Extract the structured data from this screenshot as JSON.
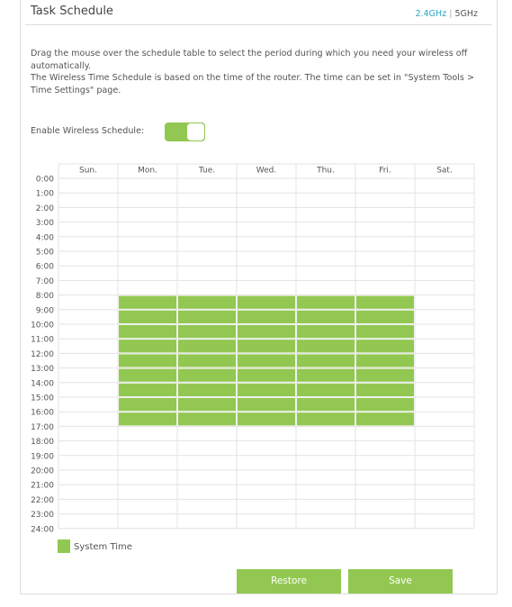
{
  "header": {
    "title": "Task Schedule",
    "band_24": "2.4GHz",
    "separator": "|",
    "band_5": "5GHz"
  },
  "intro": [
    "Drag the mouse over the schedule table to select the period during which you need your wireless off automatically.",
    "The Wireless Time Schedule is based on the time of the router. The time can be set in \"System Tools > Time Settings\" page."
  ],
  "enable": {
    "label": "Enable Wireless Schedule:",
    "on": true
  },
  "schedule": {
    "days": [
      "Sun.",
      "Mon.",
      "Tue.",
      "Wed.",
      "Thu.",
      "Fri.",
      "Sat."
    ],
    "times": [
      "0:00",
      "1:00",
      "2:00",
      "3:00",
      "4:00",
      "5:00",
      "6:00",
      "7:00",
      "8:00",
      "9:00",
      "10:00",
      "11:00",
      "12:00",
      "13:00",
      "14:00",
      "15:00",
      "16:00",
      "17:00",
      "18:00",
      "19:00",
      "20:00",
      "21:00",
      "22:00",
      "23:00",
      "24:00"
    ],
    "cells": [
      [
        false,
        false,
        false,
        false,
        false,
        false,
        false
      ],
      [
        false,
        false,
        false,
        false,
        false,
        false,
        false
      ],
      [
        false,
        false,
        false,
        false,
        false,
        false,
        false
      ],
      [
        false,
        false,
        false,
        false,
        false,
        false,
        false
      ],
      [
        false,
        false,
        false,
        false,
        false,
        false,
        false
      ],
      [
        false,
        false,
        false,
        false,
        false,
        false,
        false
      ],
      [
        false,
        false,
        false,
        false,
        false,
        false,
        false
      ],
      [
        false,
        false,
        false,
        false,
        false,
        false,
        false
      ],
      [
        false,
        true,
        true,
        true,
        true,
        true,
        false
      ],
      [
        false,
        true,
        true,
        true,
        true,
        true,
        false
      ],
      [
        false,
        true,
        true,
        true,
        true,
        true,
        false
      ],
      [
        false,
        true,
        true,
        true,
        true,
        true,
        false
      ],
      [
        false,
        true,
        true,
        true,
        true,
        true,
        false
      ],
      [
        false,
        true,
        true,
        true,
        true,
        true,
        false
      ],
      [
        false,
        true,
        true,
        true,
        true,
        true,
        false
      ],
      [
        false,
        true,
        true,
        true,
        true,
        true,
        false
      ],
      [
        false,
        true,
        true,
        true,
        true,
        true,
        false
      ],
      [
        false,
        false,
        false,
        false,
        false,
        false,
        false
      ],
      [
        false,
        false,
        false,
        false,
        false,
        false,
        false
      ],
      [
        false,
        false,
        false,
        false,
        false,
        false,
        false
      ],
      [
        false,
        false,
        false,
        false,
        false,
        false,
        false
      ],
      [
        false,
        false,
        false,
        false,
        false,
        false,
        false
      ],
      [
        false,
        false,
        false,
        false,
        false,
        false,
        false
      ],
      [
        false,
        false,
        false,
        false,
        false,
        false,
        false
      ]
    ],
    "legend": "System Time"
  },
  "buttons": {
    "restore": "Restore",
    "save": "Save"
  }
}
